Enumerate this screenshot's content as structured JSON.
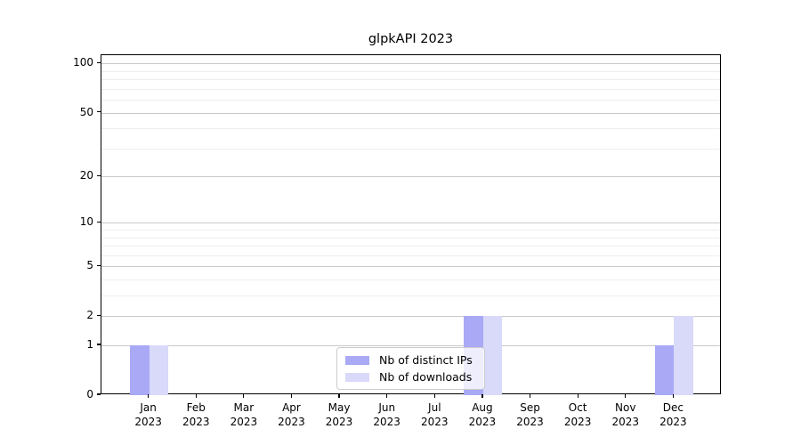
{
  "chart_data": {
    "type": "bar",
    "title": "glpkAPI 2023",
    "months": [
      "Jan",
      "Feb",
      "Mar",
      "Apr",
      "May",
      "Jun",
      "Jul",
      "Aug",
      "Sep",
      "Oct",
      "Nov",
      "Dec"
    ],
    "year_label": "2023",
    "series": [
      {
        "name": "Nb of distinct IPs",
        "color": "#a9a9f5",
        "values": [
          1,
          0,
          0,
          0,
          0,
          0,
          0,
          2,
          0,
          0,
          0,
          1
        ]
      },
      {
        "name": "Nb of downloads",
        "color": "#d9d9fa",
        "values": [
          1,
          0,
          0,
          0,
          0,
          0,
          0,
          2,
          0,
          0,
          0,
          2
        ]
      }
    ],
    "yscale": "log1p",
    "y_major_ticks": [
      0,
      1,
      2,
      5,
      10,
      20,
      50,
      100
    ],
    "y_minor_gridlines": [
      3,
      4,
      6,
      7,
      8,
      9,
      30,
      40,
      60,
      70,
      80,
      90
    ],
    "ylim": [
      0,
      113
    ],
    "grid": "on",
    "legend_position": "lower-center",
    "colors": {
      "grid_major": "#c9c9c9",
      "grid_minor": "#ededed",
      "spine": "#000000"
    }
  }
}
